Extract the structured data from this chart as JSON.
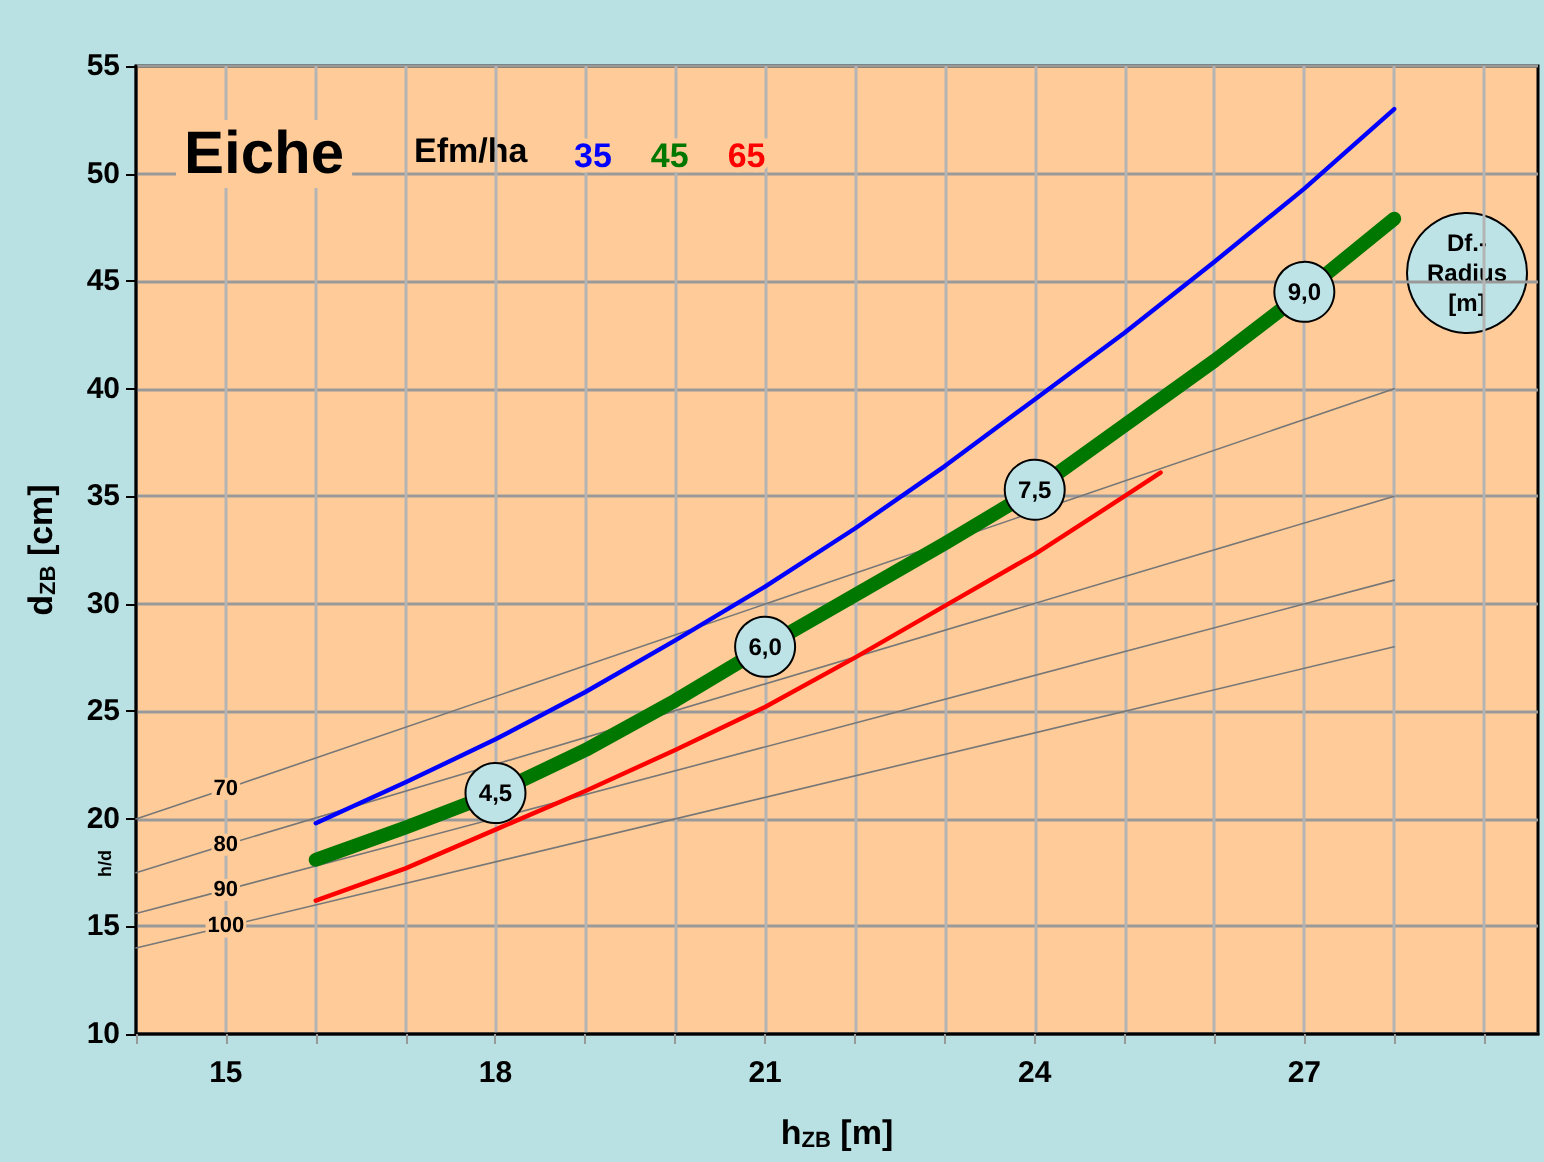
{
  "chart_data": {
    "type": "line",
    "title": "Eiche",
    "xlabel": "h$_{ZB}$ [m]",
    "ylabel": "d$_{ZB}$ [cm]",
    "legend_title": "Efm/ha",
    "series": [
      {
        "name": "35",
        "color": "#0000ff",
        "x": [
          16,
          17,
          18,
          19,
          20,
          21,
          22,
          23,
          24,
          25,
          26,
          27,
          28
        ],
        "values": [
          19.8,
          21.7,
          23.7,
          25.9,
          28.3,
          30.8,
          33.5,
          36.4,
          39.5,
          42.6,
          45.9,
          49.3,
          53.0
        ]
      },
      {
        "name": "45",
        "color": "#007700",
        "x": [
          16,
          17,
          18,
          19,
          20,
          21,
          22,
          23,
          24,
          25,
          26,
          27,
          28
        ],
        "values": [
          18.1,
          19.6,
          21.2,
          23.2,
          25.5,
          28.0,
          30.4,
          32.8,
          35.3,
          38.3,
          41.3,
          44.5,
          47.9
        ]
      },
      {
        "name": "65",
        "color": "#ff0000",
        "x": [
          16,
          17,
          18,
          19,
          20,
          21,
          22,
          23,
          24,
          25,
          25.4
        ],
        "values": [
          16.2,
          17.7,
          19.5,
          21.3,
          23.2,
          25.2,
          27.5,
          29.9,
          32.3,
          35.0,
          36.1
        ]
      },
      {
        "name": "70",
        "color": "#777777",
        "x": [
          14,
          15,
          28
        ],
        "values": [
          20.0,
          21.4,
          40.0
        ]
      },
      {
        "name": "80",
        "color": "#777777",
        "x": [
          14,
          15,
          28
        ],
        "values": [
          17.5,
          18.8,
          35.0
        ]
      },
      {
        "name": "90",
        "color": "#777777",
        "x": [
          14,
          15,
          28
        ],
        "values": [
          15.6,
          16.7,
          31.1
        ]
      },
      {
        "name": "100",
        "color": "#777777",
        "x": [
          14,
          15,
          28
        ],
        "values": [
          14.0,
          15.0,
          28.0
        ]
      }
    ],
    "xlim": [
      14,
      29.6
    ],
    "xticks": [
      {
        "value": 14,
        "label": null
      },
      15,
      {
        "value": 16,
        "label": null
      },
      {
        "value": 17,
        "label": null
      },
      18,
      {
        "value": 19,
        "label": null
      },
      {
        "value": 20,
        "label": null
      },
      21,
      {
        "value": 22,
        "label": null
      },
      {
        "value": 23,
        "label": null
      },
      24,
      {
        "value": 25,
        "label": null
      },
      {
        "value": 26,
        "label": null
      },
      27,
      {
        "value": 28,
        "label": null
      },
      {
        "value": 29,
        "label": null
      }
    ],
    "ylim": [
      10,
      55
    ],
    "yticks": [
      10,
      15,
      20,
      25,
      30,
      35,
      40,
      45,
      50,
      55
    ],
    "annotations": [
      "h/d",
      "Df.-\nRadius\n[m]",
      {
        "text": "4,5",
        "x": 18,
        "y": 21.2
      },
      {
        "text": "6,0",
        "x": 21,
        "y": 28.0
      },
      {
        "text": "7,5",
        "x": 24,
        "y": 35.3
      },
      {
        "text": "9,0",
        "x": 27,
        "y": 44.5
      }
    ],
    "grid": true,
    "legend": "top left",
    "marker": "none",
    "line_style": "solid"
  }
}
